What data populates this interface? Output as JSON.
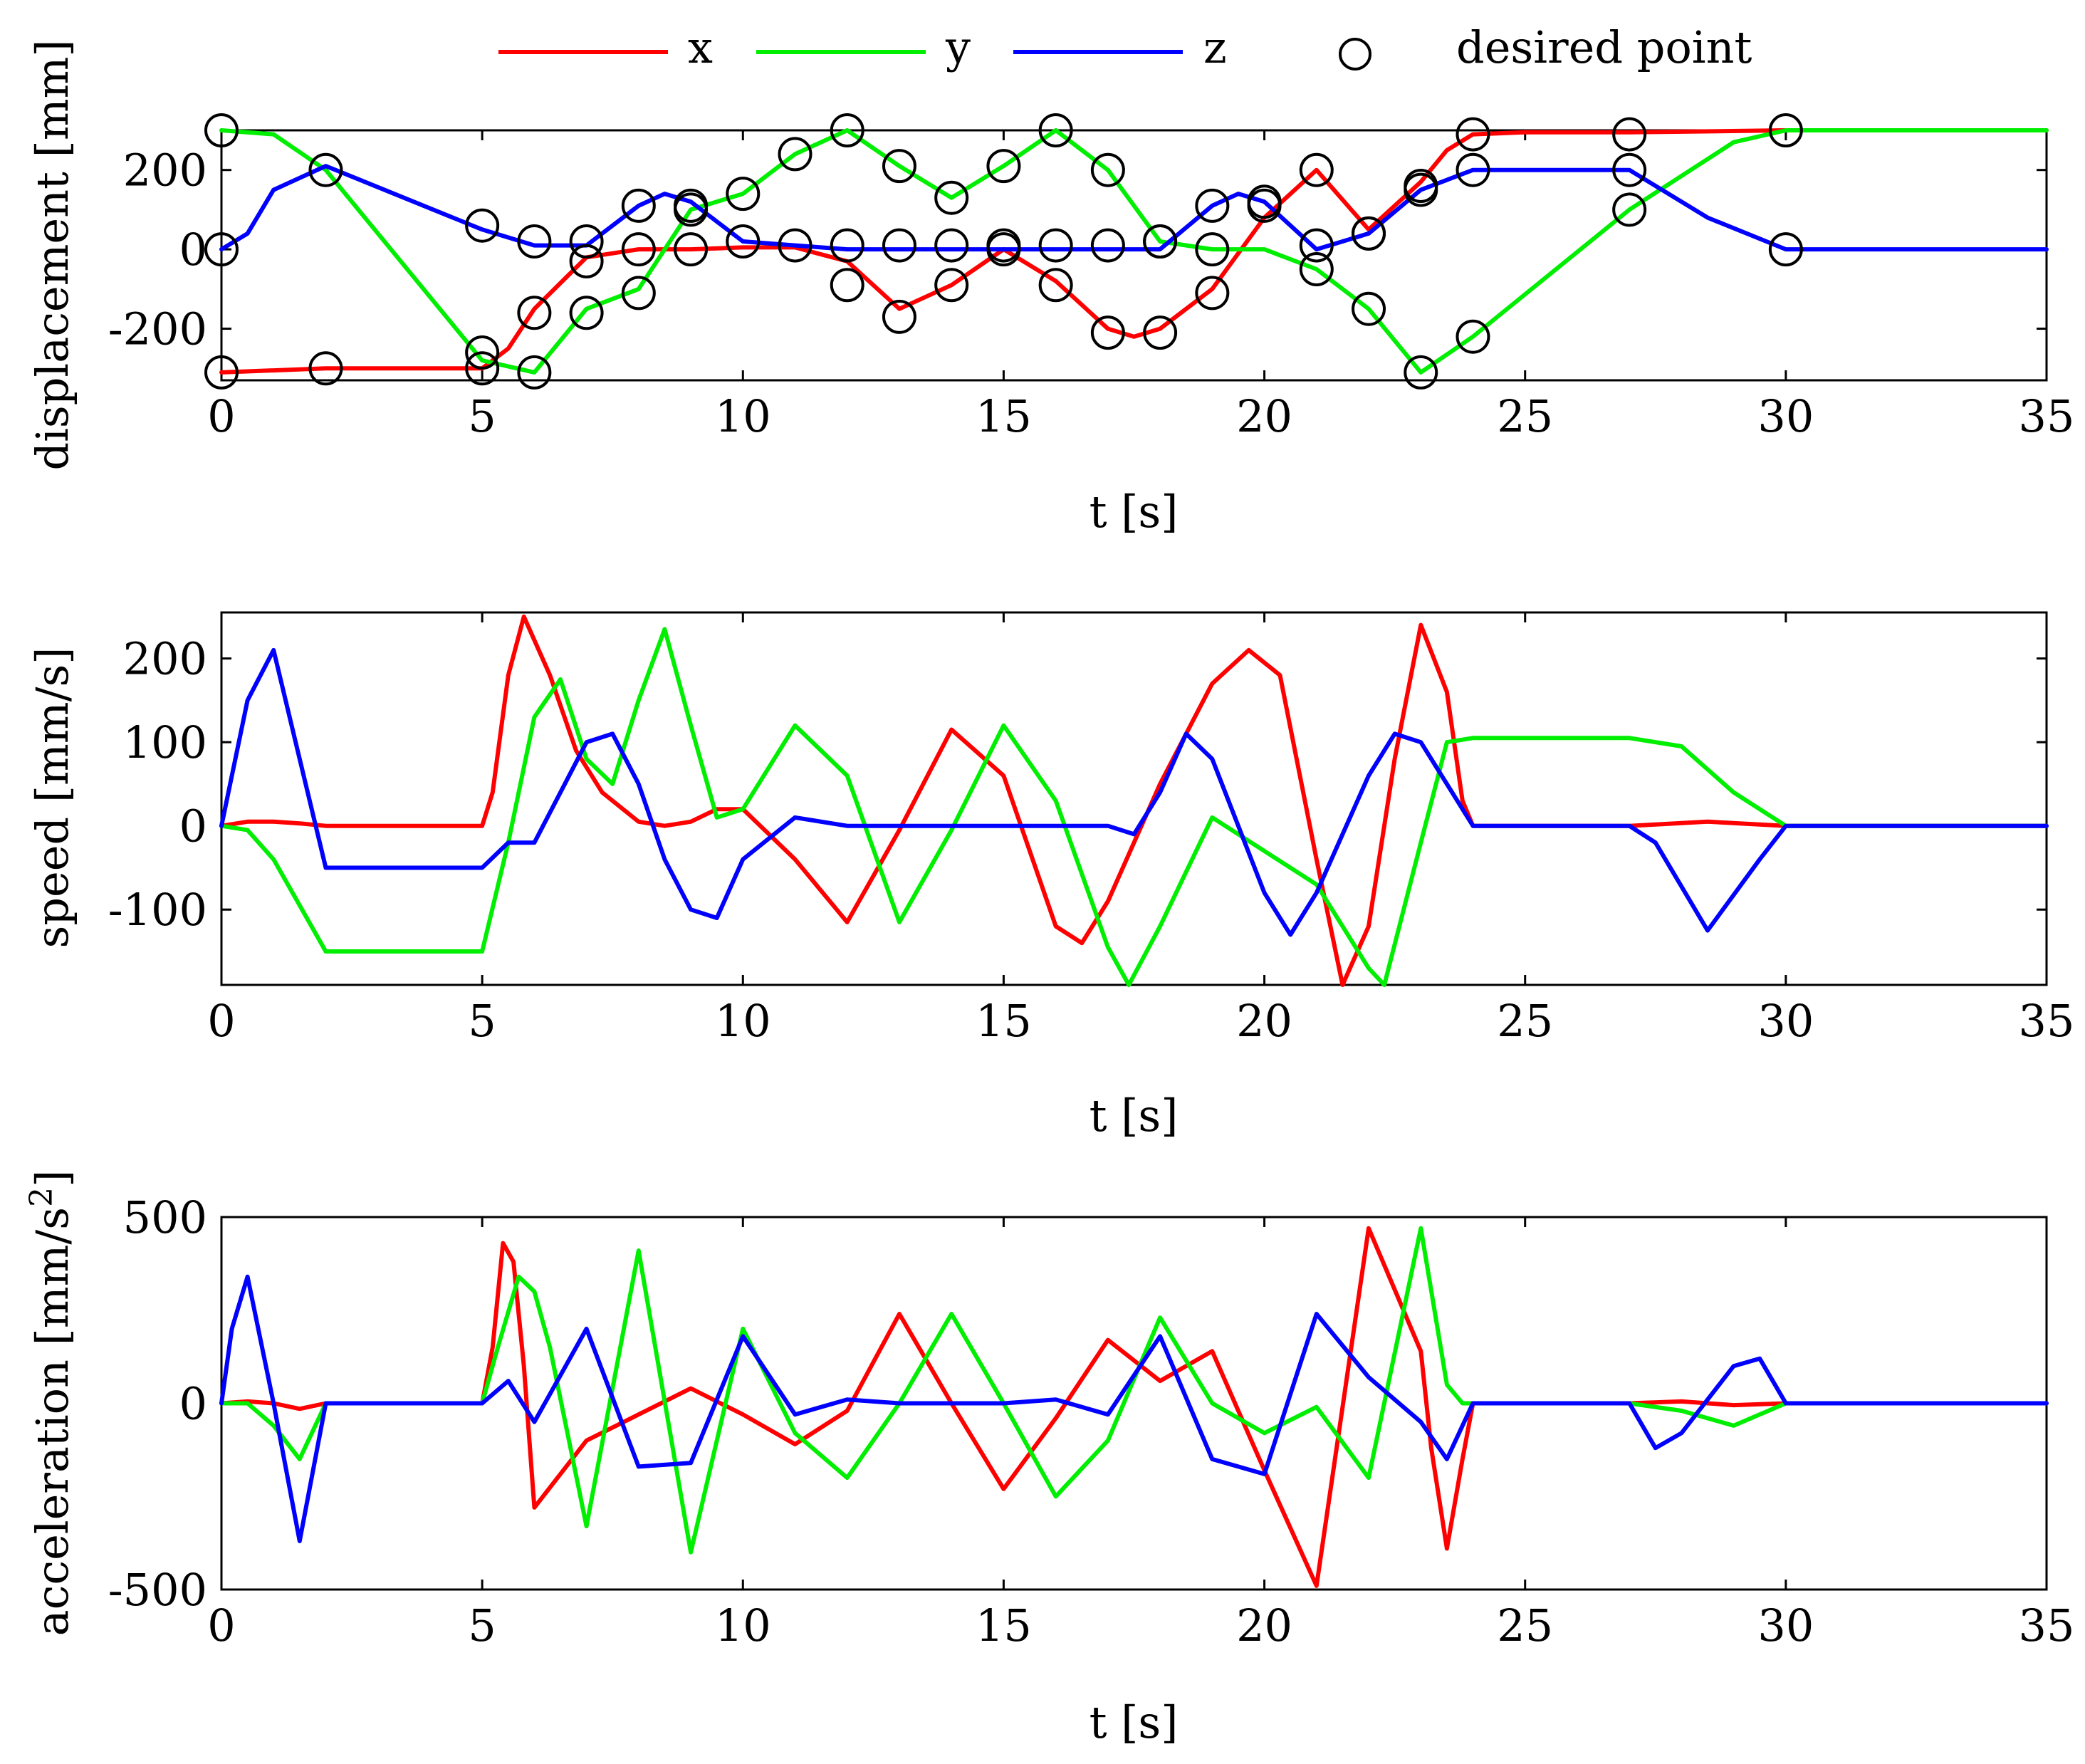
{
  "colors": {
    "x": "#ff0000",
    "y": "#00ee00",
    "z": "#0000ff",
    "marker": "#000000",
    "axes": "#000000"
  },
  "legend": {
    "placement": "top-center",
    "entries": [
      {
        "label": "x",
        "series": "x"
      },
      {
        "label": "y",
        "series": "y"
      },
      {
        "label": "z",
        "series": "z"
      },
      {
        "label": "desired point",
        "series": "markers"
      }
    ]
  },
  "chart_data": [
    {
      "id": "displacement",
      "type": "line",
      "xlabel": "t [s]",
      "ylabel": "displacement [mm]",
      "xlim": [
        0,
        35
      ],
      "ylim": [
        -330,
        300
      ],
      "xticks": [
        0,
        5,
        10,
        15,
        20,
        25,
        30,
        35
      ],
      "xtick_labels": [
        "0",
        "5",
        "10",
        "15",
        "20",
        "25",
        "30",
        "35"
      ],
      "yticks": [
        -200,
        0,
        200
      ],
      "ytick_labels": [
        "-200",
        "0",
        "200"
      ],
      "series": [
        {
          "name": "x",
          "x": [
            0,
            1,
            2,
            5,
            5.5,
            6,
            7,
            8,
            9,
            10,
            11,
            12,
            13,
            14,
            15,
            16,
            17,
            17.5,
            18,
            19,
            20,
            21,
            22,
            23,
            23.5,
            24,
            25,
            27,
            30,
            35
          ],
          "values": [
            -310,
            -305,
            -300,
            -300,
            -250,
            -150,
            -20,
            0,
            0,
            5,
            5,
            -30,
            -150,
            -90,
            0,
            -80,
            -200,
            -220,
            -200,
            -100,
            80,
            200,
            50,
            170,
            250,
            290,
            295,
            295,
            300,
            300
          ]
        },
        {
          "name": "y",
          "x": [
            0,
            1,
            2,
            5,
            6,
            7,
            8,
            9,
            10,
            11,
            12,
            13,
            14,
            15,
            16,
            17,
            18,
            19,
            20,
            21,
            22,
            23,
            24,
            27,
            29,
            30,
            35
          ],
          "values": [
            300,
            290,
            200,
            -280,
            -310,
            -150,
            -100,
            100,
            140,
            240,
            300,
            210,
            130,
            210,
            300,
            200,
            20,
            0,
            0,
            -50,
            -150,
            -310,
            -220,
            100,
            270,
            300,
            300
          ]
        },
        {
          "name": "z",
          "x": [
            0,
            0.5,
            1,
            2,
            5,
            6,
            7,
            8,
            8.5,
            9,
            10,
            11,
            12,
            14,
            16,
            17,
            18,
            19,
            19.5,
            20,
            21,
            22,
            23,
            24,
            27,
            28.5,
            30,
            35
          ],
          "values": [
            0,
            40,
            150,
            210,
            50,
            10,
            10,
            110,
            140,
            120,
            20,
            10,
            0,
            0,
            0,
            0,
            0,
            110,
            140,
            120,
            0,
            40,
            150,
            200,
            200,
            80,
            0,
            0
          ]
        }
      ],
      "markers": {
        "name": "desired point",
        "points": [
          [
            0,
            300
          ],
          [
            0,
            0
          ],
          [
            0,
            -310
          ],
          [
            2,
            200
          ],
          [
            2,
            -300
          ],
          [
            5,
            60
          ],
          [
            5,
            -260
          ],
          [
            5,
            -300
          ],
          [
            6,
            20
          ],
          [
            6,
            -160
          ],
          [
            6,
            -310
          ],
          [
            7,
            20
          ],
          [
            7,
            -30
          ],
          [
            7,
            -160
          ],
          [
            8,
            110
          ],
          [
            8,
            0
          ],
          [
            8,
            -110
          ],
          [
            9,
            110
          ],
          [
            9,
            100
          ],
          [
            9,
            0
          ],
          [
            10,
            140
          ],
          [
            10,
            20
          ],
          [
            11,
            240
          ],
          [
            11,
            10
          ],
          [
            12,
            300
          ],
          [
            12,
            10
          ],
          [
            12,
            -90
          ],
          [
            13,
            210
          ],
          [
            13,
            10
          ],
          [
            13,
            -170
          ],
          [
            14,
            130
          ],
          [
            14,
            10
          ],
          [
            14,
            -90
          ],
          [
            15,
            210
          ],
          [
            15,
            0
          ],
          [
            15,
            10
          ],
          [
            16,
            300
          ],
          [
            16,
            10
          ],
          [
            16,
            -90
          ],
          [
            17,
            200
          ],
          [
            17,
            10
          ],
          [
            17,
            -210
          ],
          [
            18,
            20
          ],
          [
            18,
            20
          ],
          [
            18,
            -210
          ],
          [
            19,
            110
          ],
          [
            19,
            0
          ],
          [
            19,
            -110
          ],
          [
            20,
            110
          ],
          [
            20,
            120
          ],
          [
            21,
            200
          ],
          [
            21,
            10
          ],
          [
            21,
            -50
          ],
          [
            22,
            40
          ],
          [
            22,
            40
          ],
          [
            22,
            -150
          ],
          [
            23,
            160
          ],
          [
            23,
            150
          ],
          [
            23,
            -310
          ],
          [
            24,
            290
          ],
          [
            24,
            200
          ],
          [
            24,
            -220
          ],
          [
            27,
            290
          ],
          [
            27,
            200
          ],
          [
            27,
            100
          ],
          [
            30,
            300
          ],
          [
            30,
            0
          ]
        ]
      }
    },
    {
      "id": "speed",
      "type": "line",
      "xlabel": "t [s]",
      "ylabel": "speed [mm/s]",
      "xlim": [
        0,
        35
      ],
      "ylim": [
        -190,
        255
      ],
      "xticks": [
        0,
        5,
        10,
        15,
        20,
        25,
        30,
        35
      ],
      "xtick_labels": [
        "0",
        "5",
        "10",
        "15",
        "20",
        "25",
        "30",
        "35"
      ],
      "yticks": [
        -100,
        0,
        100,
        200
      ],
      "ytick_labels": [
        "-100",
        "0",
        "100",
        "200"
      ],
      "series": [
        {
          "name": "x",
          "x": [
            0,
            0.5,
            1,
            1.5,
            2,
            5,
            5.2,
            5.5,
            5.8,
            6.3,
            6.8,
            7.3,
            8,
            8.5,
            9,
            9.5,
            10,
            11,
            12,
            13,
            14,
            15,
            16,
            16.5,
            17,
            18,
            19,
            19.7,
            20.3,
            21,
            21.5,
            22,
            22.5,
            23,
            23.5,
            23.8,
            24,
            27,
            28.5,
            30,
            35
          ],
          "values": [
            0,
            5,
            5,
            3,
            0,
            0,
            40,
            180,
            250,
            180,
            90,
            40,
            5,
            0,
            5,
            20,
            20,
            -40,
            -115,
            -5,
            115,
            60,
            -120,
            -140,
            -90,
            50,
            170,
            210,
            180,
            -40,
            -190,
            -120,
            80,
            240,
            160,
            30,
            0,
            0,
            5,
            0,
            0
          ]
        },
        {
          "name": "y",
          "x": [
            0,
            0.5,
            1,
            2,
            5,
            5.5,
            6,
            6.5,
            7,
            7.5,
            8,
            8.5,
            9,
            9.5,
            10,
            11,
            12,
            13,
            14,
            15,
            16,
            17,
            17.4,
            18,
            19,
            20,
            21,
            21.5,
            22,
            22.3,
            23,
            23.5,
            24,
            27,
            28,
            29,
            30,
            35
          ],
          "values": [
            0,
            -5,
            -40,
            -150,
            -150,
            -20,
            130,
            175,
            80,
            50,
            150,
            235,
            120,
            10,
            20,
            120,
            60,
            -115,
            -5,
            120,
            30,
            -145,
            -190,
            -120,
            10,
            -30,
            -70,
            -120,
            -170,
            -190,
            -20,
            100,
            105,
            105,
            95,
            40,
            0,
            0
          ]
        },
        {
          "name": "z",
          "x": [
            0,
            0.5,
            1,
            1.5,
            2,
            5,
            5.5,
            6,
            6.5,
            7,
            7.5,
            8,
            8.5,
            9,
            9.5,
            10,
            11,
            12,
            13,
            14,
            15,
            16,
            17,
            17.5,
            18,
            18.5,
            19,
            20,
            20.5,
            21,
            22,
            22.5,
            23,
            24,
            27,
            27.5,
            28.5,
            29.5,
            30,
            35
          ],
          "values": [
            0,
            150,
            210,
            80,
            -50,
            -50,
            -20,
            -20,
            40,
            100,
            110,
            50,
            -40,
            -100,
            -110,
            -40,
            10,
            0,
            0,
            0,
            0,
            0,
            0,
            -10,
            40,
            110,
            80,
            -80,
            -130,
            -80,
            60,
            110,
            100,
            0,
            0,
            -20,
            -125,
            -40,
            0,
            0
          ]
        }
      ]
    },
    {
      "id": "acceleration",
      "type": "line",
      "xlabel": "t [s]",
      "ylabel": "acceleration [mm/s²]",
      "ylabel_base": "acceleration [mm/s",
      "ylabel_sup": "2",
      "ylabel_end": "]",
      "xlim": [
        0,
        35
      ],
      "ylim": [
        -500,
        500
      ],
      "xticks": [
        0,
        5,
        10,
        15,
        20,
        25,
        30,
        35
      ],
      "xtick_labels": [
        "0",
        "5",
        "10",
        "15",
        "20",
        "25",
        "30",
        "35"
      ],
      "yticks": [
        -500,
        0,
        500
      ],
      "ytick_labels": [
        "-500",
        "0",
        "500"
      ],
      "series": [
        {
          "name": "x",
          "x": [
            0,
            0.5,
            1,
            1.5,
            2,
            5,
            5.2,
            5.4,
            5.6,
            5.8,
            6,
            7,
            8,
            9,
            10,
            11,
            12,
            13,
            14,
            15,
            16,
            17,
            18,
            19,
            20,
            21,
            22,
            23,
            23.2,
            23.5,
            23.8,
            24,
            27,
            28,
            29,
            30,
            35
          ],
          "values": [
            0,
            5,
            0,
            -15,
            0,
            0,
            150,
            430,
            380,
            100,
            -280,
            -100,
            -30,
            40,
            -30,
            -110,
            -20,
            240,
            0,
            -230,
            -40,
            170,
            60,
            140,
            -180,
            -490,
            470,
            140,
            -120,
            -390,
            -150,
            0,
            0,
            5,
            -5,
            0,
            0
          ]
        },
        {
          "name": "y",
          "x": [
            0,
            0.5,
            1,
            1.5,
            2,
            5,
            5.3,
            5.7,
            6,
            6.3,
            7,
            8,
            9,
            10,
            11,
            12,
            13,
            14,
            15,
            16,
            17,
            18,
            19,
            20,
            21,
            22,
            23,
            23.5,
            23.8,
            24,
            27,
            28,
            29,
            30,
            35
          ],
          "values": [
            0,
            0,
            -60,
            -150,
            0,
            0,
            150,
            340,
            300,
            150,
            -330,
            410,
            -400,
            200,
            -80,
            -200,
            0,
            240,
            0,
            -250,
            -100,
            230,
            0,
            -80,
            -10,
            -200,
            470,
            50,
            0,
            0,
            0,
            -20,
            -60,
            0,
            0
          ]
        },
        {
          "name": "z",
          "x": [
            0,
            0.2,
            0.5,
            1,
            1.5,
            2,
            5,
            5.5,
            6,
            7,
            8,
            9,
            10,
            11,
            12,
            13,
            14,
            15,
            16,
            17,
            18,
            19,
            20,
            21,
            22,
            23,
            23.5,
            24,
            27,
            27.5,
            28,
            29,
            29.5,
            30,
            35
          ],
          "values": [
            0,
            200,
            340,
            0,
            -370,
            0,
            0,
            60,
            -50,
            200,
            -170,
            -160,
            180,
            -30,
            10,
            0,
            0,
            0,
            10,
            -30,
            180,
            -150,
            -190,
            240,
            70,
            -50,
            -150,
            0,
            0,
            -120,
            -80,
            100,
            120,
            0,
            0
          ]
        }
      ]
    }
  ]
}
